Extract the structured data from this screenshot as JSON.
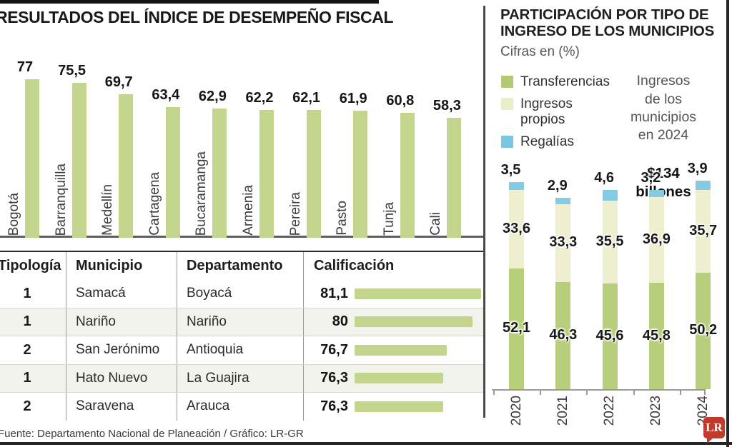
{
  "left_panel": {
    "title": "RESULTADOS DEL ÍNDICE DE DESEMPEÑO FISCAL"
  },
  "right_panel": {
    "title": "PARTICIPACIÓN POR TIPO DE\nINGRESO DE LOS MUNICIPIOS",
    "units_note": "Cifras en (%)",
    "legend": [
      {
        "label": "Transferencias",
        "color": "#b3ca72"
      },
      {
        "label": "Ingresos propios",
        "color": "#e9edc8"
      },
      {
        "label": "Regalías",
        "color": "#7ac8e0"
      }
    ],
    "annotation": {
      "text": "Ingresos\nde los\nmunicipios\nen 2024",
      "amount": "$134\nbillones"
    }
  },
  "chart_data": [
    {
      "type": "bar",
      "title": "RESULTADOS DEL ÍNDICE DE DESEMPEÑO FISCAL",
      "categories": [
        "Bogotá",
        "Barranquilla",
        "Medellín",
        "Cartagena",
        "Bucaramanga",
        "Armenia",
        "Pereira",
        "Pasto",
        "Tunja",
        "Cali"
      ],
      "values": [
        77,
        75.5,
        69.7,
        63.4,
        62.9,
        62.2,
        62.1,
        61.9,
        60.8,
        58.3
      ],
      "xlabel": "",
      "ylabel": "",
      "ylim": [
        0,
        80
      ],
      "grid": false,
      "value_labels": true,
      "bar_color": "#c3d58d",
      "decimal_separator": ","
    },
    {
      "type": "stacked-bar",
      "title": "PARTICIPACIÓN POR TIPO DE INGRESO DE LOS MUNICIPIOS",
      "subtitle": "Cifras en (%)",
      "categories": [
        "2020",
        "2021",
        "2022",
        "2023",
        "2024"
      ],
      "series": [
        {
          "name": "Transferencias",
          "color": "#b7cf7a",
          "values": [
            52.1,
            46.3,
            45.6,
            45.8,
            50.2
          ]
        },
        {
          "name": "Ingresos propios",
          "color": "#edefce",
          "values": [
            33.6,
            33.3,
            35.5,
            36.9,
            35.7
          ]
        },
        {
          "name": "Regalías",
          "color": "#85cbe1",
          "values": [
            3.5,
            2.9,
            4.6,
            3.2,
            3.9
          ]
        }
      ],
      "ylim": [
        0,
        100
      ],
      "grid": false,
      "legend_position": "top-left",
      "value_labels": true,
      "decimal_separator": ","
    }
  ],
  "table": {
    "headers": [
      "Tipología",
      "Municipio",
      "Departamento",
      "Calificación"
    ],
    "rows": [
      {
        "tipologia": "1",
        "municipio": "Samacá",
        "departamento": "Boyacá",
        "calificacion": 81.1
      },
      {
        "tipologia": "1",
        "municipio": "Nariño",
        "departamento": "Nariño",
        "calificacion": 80
      },
      {
        "tipologia": "2",
        "municipio": "San Jerónimo",
        "departamento": "Antioquia",
        "calificacion": 76.7
      },
      {
        "tipologia": "1",
        "municipio": "Hato Nuevo",
        "departamento": "La Guajira",
        "calificacion": 76.3
      },
      {
        "tipologia": "2",
        "municipio": "Saravena",
        "departamento": "Arauca",
        "calificacion": 76.3
      }
    ]
  },
  "footer": {
    "source": "Fuente: Departamento Nacional de Planeación / Gráfico: LR-GR",
    "logo": "LR"
  }
}
